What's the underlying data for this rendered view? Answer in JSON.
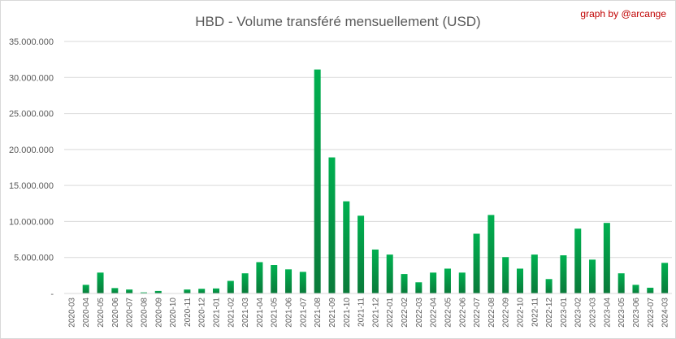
{
  "chart_data": {
    "type": "bar",
    "title": "HBD - Volume transféré mensuellement (USD)",
    "credit": "graph by @arcange",
    "xlabel": "",
    "ylabel": "",
    "ylim": [
      0,
      35000000
    ],
    "yticks": [
      {
        "value": 0,
        "label": "-"
      },
      {
        "value": 5000000,
        "label": "5.000.000"
      },
      {
        "value": 10000000,
        "label": "10.000.000"
      },
      {
        "value": 15000000,
        "label": "15.000.000"
      },
      {
        "value": 20000000,
        "label": "20.000.000"
      },
      {
        "value": 25000000,
        "label": "25.000.000"
      },
      {
        "value": 30000000,
        "label": "30.000.000"
      },
      {
        "value": 35000000,
        "label": "35.000.000"
      }
    ],
    "grid": true,
    "legend": "none",
    "bar_color_top": "#00b050",
    "bar_color_bottom": "#0a7a3a",
    "categories": [
      "2020-03",
      "2020-04",
      "2020-05",
      "2020-06",
      "2020-07",
      "2020-08",
      "2020-09",
      "2020-10",
      "2020-11",
      "2020-12",
      "2021-01",
      "2021-02",
      "2021-03",
      "2021-04",
      "2021-05",
      "2021-06",
      "2021-07",
      "2021-08",
      "2021-09",
      "2021-10",
      "2021-11",
      "2021-12",
      "2022-01",
      "2022-02",
      "2022-03",
      "2022-04",
      "2022-05",
      "2022-06",
      "2022-07",
      "2022-08",
      "2022-09",
      "2022-10",
      "2022-11",
      "2022-12",
      "2023-01",
      "2023-02",
      "2023-03",
      "2023-04",
      "2023-05",
      "2023-06",
      "2023-07",
      "2024-03"
    ],
    "values": [
      0,
      1200000,
      2900000,
      750000,
      550000,
      150000,
      350000,
      50000,
      550000,
      650000,
      700000,
      1750000,
      2800000,
      4350000,
      3950000,
      3350000,
      3000000,
      31100000,
      18900000,
      12800000,
      10800000,
      6100000,
      5400000,
      2700000,
      1550000,
      2900000,
      3450000,
      2900000,
      8300000,
      10900000,
      5050000,
      3450000,
      5400000,
      2000000,
      5300000,
      9000000,
      4700000,
      9800000,
      2800000,
      1200000,
      800000,
      4250000
    ]
  }
}
